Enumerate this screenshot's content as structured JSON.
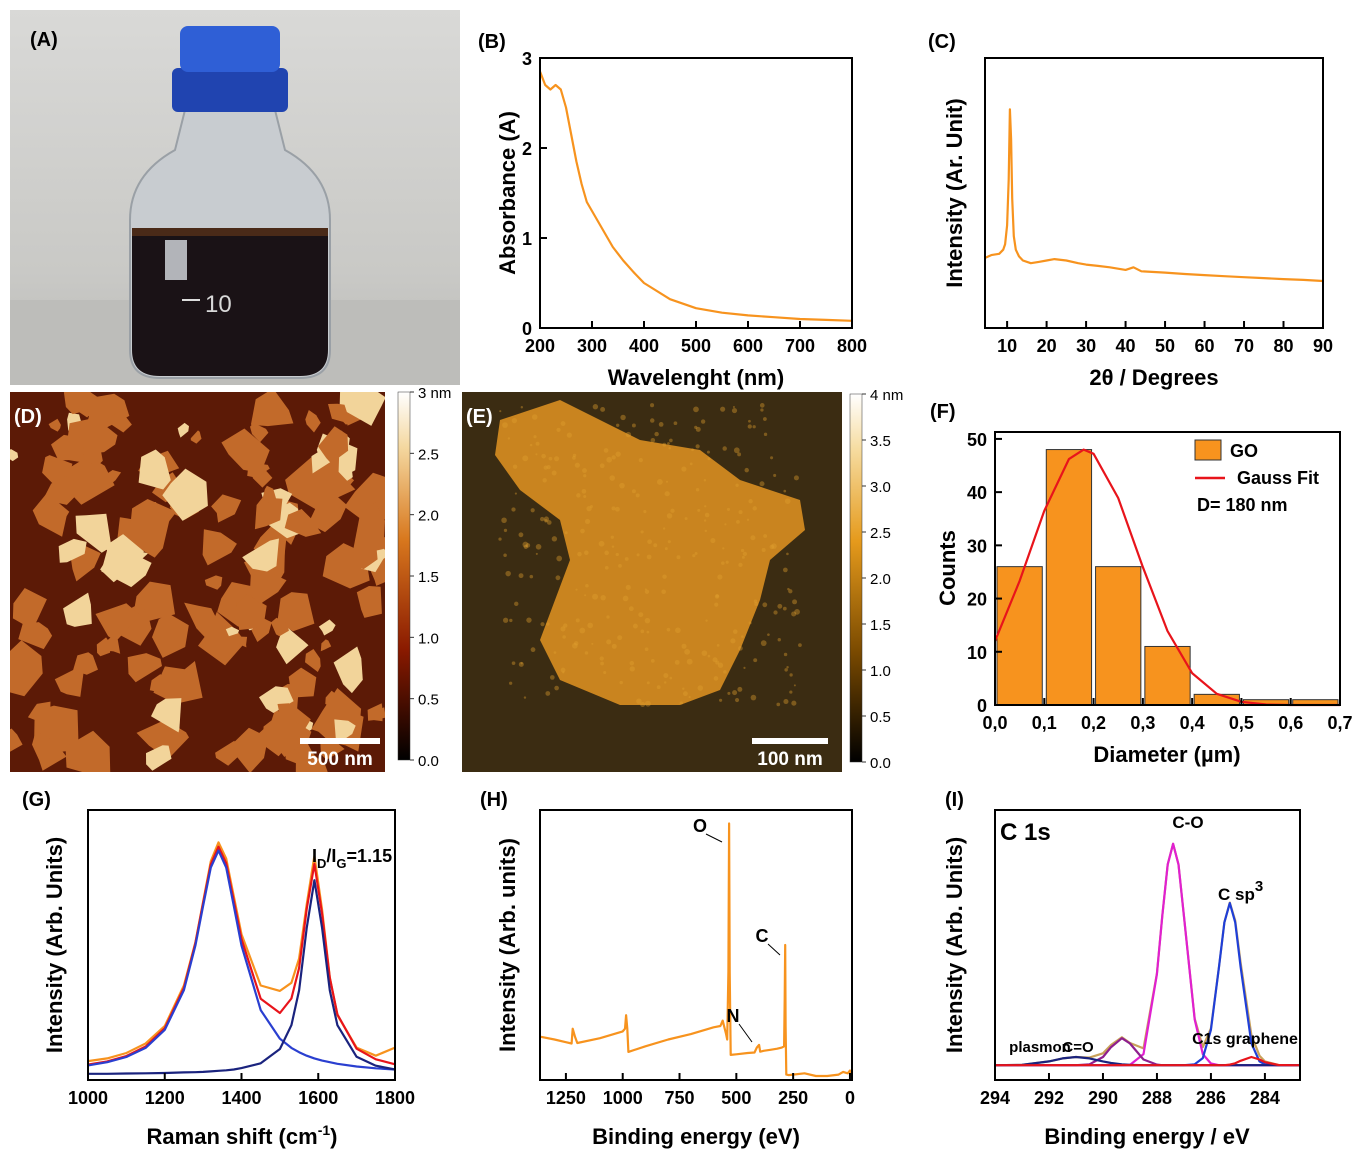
{
  "chart_data": [
    {
      "type": "photo",
      "label": "(A)",
      "annotations": [
        "10"
      ]
    },
    {
      "type": "line",
      "label": "(B)",
      "xlabel": "Wavelenght (nm)",
      "ylabel": "Absorbance (A)",
      "xlim": [
        200,
        800
      ],
      "ylim": [
        0,
        3
      ],
      "xticks": [
        200,
        300,
        400,
        500,
        600,
        700,
        800
      ],
      "yticks": [
        0,
        1,
        2,
        3
      ],
      "x": [
        200,
        210,
        220,
        230,
        240,
        250,
        260,
        270,
        280,
        290,
        300,
        320,
        340,
        360,
        380,
        400,
        450,
        500,
        550,
        600,
        650,
        700,
        750,
        800
      ],
      "series": [
        {
          "color": "#f7931e",
          "values": [
            2.85,
            2.7,
            2.65,
            2.7,
            2.65,
            2.45,
            2.15,
            1.85,
            1.6,
            1.4,
            1.3,
            1.1,
            0.9,
            0.75,
            0.62,
            0.5,
            0.32,
            0.22,
            0.17,
            0.14,
            0.12,
            0.1,
            0.09,
            0.08
          ]
        }
      ]
    },
    {
      "type": "line",
      "label": "(C)",
      "xlabel": "2θ / Degrees",
      "ylabel": "Intensity (Ar. Unit)",
      "xlim": [
        4.4,
        90
      ],
      "ylim": [
        0,
        100
      ],
      "xticks": [
        10,
        20,
        30,
        40,
        50,
        60,
        70,
        80,
        90
      ],
      "x": [
        4.5,
        6,
        8,
        9,
        9.5,
        10,
        10.4,
        10.7,
        11,
        11.3,
        11.7,
        12.2,
        13,
        14,
        16,
        18,
        20,
        22,
        25,
        28,
        30,
        33,
        36,
        40,
        42,
        44,
        50,
        55,
        60,
        65,
        70,
        75,
        80,
        85,
        90
      ],
      "series": [
        {
          "color": "#f7931e",
          "values": [
            26,
            27,
            27.5,
            29,
            31,
            38,
            55,
            81,
            70,
            48,
            34,
            29,
            26.5,
            25,
            24,
            24.5,
            25,
            25.5,
            25,
            24,
            23.5,
            23,
            22.5,
            21.5,
            22.5,
            21,
            20.5,
            20,
            19.6,
            19.2,
            18.8,
            18.5,
            18.1,
            17.8,
            17.4
          ]
        }
      ]
    },
    {
      "type": "afm",
      "label": "(D)",
      "scale_bar": "500 nm",
      "clim": [
        0,
        3
      ],
      "cticks": [
        {
          "value": 0,
          "label": "0.0"
        },
        0.5,
        {
          "value": 1,
          "label": "1.0"
        },
        1.5,
        {
          "value": 2,
          "label": "2.0"
        },
        2.5,
        {
          "value": 3,
          "label": "3 nm"
        }
      ]
    },
    {
      "type": "afm",
      "label": "(E)",
      "scale_bar": "100 nm",
      "clim": [
        0,
        4
      ],
      "cticks": [
        {
          "value": 0,
          "label": "0.0"
        },
        0.5,
        {
          "value": 1,
          "label": "1.0"
        },
        1.5,
        {
          "value": 2,
          "label": "2.0"
        },
        2.5,
        {
          "value": 3,
          "label": "3.0"
        },
        3.5,
        {
          "value": 4,
          "label": "4 nm"
        }
      ]
    },
    {
      "type": "histogram",
      "label": "(F)",
      "xlabel": "Diameter (µm)",
      "ylabel": "Counts",
      "name": "GO",
      "color": "#f7931e",
      "bins": [
        0,
        0.1,
        0.2,
        0.3,
        0.4,
        0.5,
        0.6,
        0.7
      ],
      "counts": [
        26,
        48,
        26,
        11,
        2,
        1,
        1
      ],
      "xlim": [
        0,
        0.7
      ],
      "ylim": [
        0,
        51.3
      ],
      "xticks": [
        {
          "value": 0,
          "label": "0,0"
        },
        {
          "value": 0.1,
          "label": "0,1"
        },
        {
          "value": 0.2,
          "label": "0,2"
        },
        {
          "value": 0.3,
          "label": "0,3"
        },
        {
          "value": 0.4,
          "label": "0,4"
        },
        {
          "value": 0.5,
          "label": "0,5"
        },
        {
          "value": 0.6,
          "label": "0,6"
        },
        {
          "value": 0.7,
          "label": "0,7"
        }
      ],
      "yticks": [
        0,
        10,
        20,
        30,
        40,
        50
      ],
      "annotation": "D= 180 nm",
      "series": [
        {
          "name": "Gauss Fit",
          "color": "#e8141b",
          "x": [
            0,
            0.05,
            0.1,
            0.15,
            0.18,
            0.2,
            0.25,
            0.3,
            0.35,
            0.4,
            0.45,
            0.5,
            0.55,
            0.6,
            0.65,
            0.7
          ],
          "values": [
            12,
            23.3,
            36.5,
            46.2,
            48,
            47.2,
            38.9,
            25.9,
            13.9,
            6,
            2.1,
            0.6,
            0.1,
            0,
            0,
            0
          ]
        }
      ]
    },
    {
      "type": "line",
      "label": "(G)",
      "xlabel": [
        "Raman shift (cm",
        "-1",
        ")"
      ],
      "ylabel": "Intensity (Arb. Units)",
      "xlim": [
        1000,
        1800
      ],
      "ylim": [
        0,
        100
      ],
      "xticks": [
        1000,
        1200,
        1400,
        1600,
        1800
      ],
      "annotation": [
        "I",
        "D",
        "/I",
        "G",
        "=1.15"
      ],
      "x": [
        1000,
        1050,
        1100,
        1150,
        1200,
        1250,
        1280,
        1300,
        1320,
        1340,
        1360,
        1380,
        1400,
        1450,
        1500,
        1530,
        1550,
        1570,
        1590,
        1610,
        1630,
        1650,
        1700,
        1750,
        1800
      ],
      "series": [
        {
          "color": "#f7931e",
          "values": [
            7,
            8,
            10,
            13.5,
            20,
            35,
            51,
            66,
            81,
            88,
            82,
            68,
            54,
            35,
            33,
            36,
            45,
            65,
            83,
            63,
            38,
            24,
            12,
            9,
            12
          ]
        },
        {
          "color": "#e8141b",
          "values": [
            5.7,
            6.9,
            8.9,
            12.4,
            19.2,
            34.1,
            50.7,
            65.5,
            79.9,
            86.4,
            80.3,
            66.4,
            52.2,
            30.1,
            24.8,
            30.2,
            41.5,
            63.3,
            80,
            61.5,
            37.8,
            24.3,
            11.6,
            7.65,
            5.8
          ]
        },
        {
          "color": "#2a3fd0",
          "values": [
            5.4,
            6.6,
            8.5,
            11.9,
            18.6,
            33.3,
            49.8,
            64.5,
            78.7,
            85,
            78.7,
            64.5,
            49.8,
            25.9,
            15.3,
            11.9,
            10.3,
            9,
            8,
            7.2,
            6.6,
            6,
            5,
            4.35,
            3.9
          ]
        },
        {
          "color": "#1a237e",
          "values": [
            2.3,
            2.3,
            2.4,
            2.5,
            2.6,
            2.8,
            2.9,
            3,
            3.2,
            3.4,
            3.6,
            3.9,
            4.4,
            6.2,
            11.5,
            20.3,
            33.2,
            56.3,
            74,
            56.3,
            33.2,
            20.3,
            8.6,
            5.3,
            3.9
          ]
        }
      ]
    },
    {
      "type": "line",
      "label": "(H)",
      "xlabel": "Binding energy (eV)",
      "ylabel": "Intensity (Arb. units)",
      "xlim": [
        1364,
        -9
      ],
      "ylim": [
        0,
        100
      ],
      "xticks": [
        1250,
        1000,
        750,
        500,
        250,
        0
      ],
      "peak_labels": [
        "O",
        "N",
        "C"
      ],
      "x": [
        1360,
        1300,
        1250,
        1225,
        1220,
        1210,
        1200,
        1100,
        1000,
        990,
        985,
        980,
        975,
        900,
        800,
        700,
        600,
        570,
        560,
        545,
        540,
        535,
        532,
        529,
        525,
        500,
        450,
        420,
        410,
        400,
        395,
        380,
        350,
        320,
        300,
        290,
        287,
        285,
        283,
        280,
        270,
        250,
        200,
        150,
        100,
        50,
        30,
        10,
        0,
        -8
      ],
      "series": [
        {
          "color": "#f7931e",
          "values": [
            16,
            15,
            14,
            13.5,
            19,
            16,
            13.7,
            15.5,
            18,
            19,
            24,
            19,
            10.4,
            12.5,
            15,
            17,
            19.5,
            20,
            22,
            17,
            15,
            40,
            95,
            40,
            9.3,
            9.5,
            10,
            10.2,
            12,
            13,
            10.5,
            10.8,
            11.2,
            11.6,
            12,
            12.5,
            30,
            50,
            20,
            2,
            1.8,
            2,
            2.5,
            1.5,
            1.5,
            2,
            3,
            2.5,
            3.5,
            1.5
          ]
        }
      ]
    },
    {
      "type": "line",
      "label": "(I)",
      "xlabel": "Binding energy / eV",
      "ylabel": "Intensity (Arb. Units)",
      "xlim": [
        294,
        282.7
      ],
      "ylim": [
        0,
        100
      ],
      "xticks": [
        294,
        292,
        290,
        288,
        286,
        284
      ],
      "title": "C 1s",
      "peak_labels": [
        "C-O",
        "C=O",
        "plasmon",
        "C1s graphene"
      ],
      "sp3_label": [
        "C sp",
        "3"
      ],
      "x": [
        294,
        293,
        292,
        291.5,
        291,
        290.5,
        290,
        289.7,
        289.3,
        289,
        288.5,
        288,
        287.8,
        287.6,
        287.4,
        287.2,
        287,
        286.6,
        286.3,
        286,
        285.7,
        285.5,
        285.3,
        285.1,
        284.9,
        284.5,
        284.2,
        284,
        283.5,
        283,
        282.7
      ],
      "series": [
        {
          "color": "#c9a15a",
          "values": [
            5.5,
            5.6,
            6.9,
            8,
            8.5,
            8.3,
            9.9,
            13,
            15.8,
            13.7,
            11.7,
            39.4,
            60.8,
            79.8,
            87.5,
            79.8,
            60.8,
            22.7,
            12.2,
            19.1,
            41.9,
            58.4,
            65.7,
            59.1,
            43.5,
            16.6,
            9,
            6.9,
            5.55,
            5.5,
            5.5
          ]
        },
        {
          "color": "#e020d0",
          "values": [
            5.5,
            5.5,
            5.5,
            5.5,
            5.5,
            5.5,
            5.5,
            5.5,
            5.5,
            5.6,
            9.6,
            39.2,
            60.8,
            79.8,
            87.5,
            79.8,
            60.8,
            22.4,
            9.6,
            6.1,
            5.5,
            5.5,
            5.5,
            5.5,
            5.5,
            5.5,
            5.5,
            5.5,
            5.5,
            5.5,
            5.5
          ]
        },
        {
          "color": "#1f3fd8",
          "values": [
            5.5,
            5.5,
            5.5,
            5.5,
            5.5,
            5.5,
            5.5,
            5.5,
            5.5,
            5.5,
            5.5,
            5.5,
            5.5,
            5.5,
            5.5,
            5.5,
            5.5,
            5.8,
            8.1,
            18.5,
            41.9,
            58.4,
            65.5,
            58.4,
            41.9,
            13.6,
            6.9,
            5.8,
            5.5,
            5.5,
            5.5
          ]
        },
        {
          "color": "#8e1f8e",
          "values": [
            5.5,
            5.5,
            5.5,
            5.5,
            5.5,
            5.8,
            8.5,
            12.2,
            15.5,
            13.5,
            7.6,
            5.7,
            5.5,
            5.5,
            5.5,
            5.5,
            5.5,
            5.5,
            5.5,
            5.5,
            5.5,
            5.5,
            5.5,
            5.5,
            5.5,
            5.5,
            5.5,
            5.5,
            5.5,
            5.5,
            5.5
          ]
        },
        {
          "color": "#1a237e",
          "values": [
            5.5,
            5.6,
            6.9,
            8,
            8.5,
            8,
            6.9,
            6.3,
            5.8,
            5.6,
            5.5,
            5.5,
            5.5,
            5.5,
            5.5,
            5.5,
            5.5,
            5.5,
            5.5,
            5.5,
            5.5,
            5.5,
            5.5,
            5.5,
            5.5,
            5.5,
            5.5,
            5.5,
            5.5,
            5.5,
            5.5
          ]
        },
        {
          "color": "#e8141b",
          "values": [
            5.5,
            5.5,
            5.5,
            5.5,
            5.5,
            5.5,
            5.5,
            5.5,
            5.5,
            5.5,
            5.5,
            5.5,
            5.5,
            5.5,
            5.5,
            5.5,
            5.5,
            5.5,
            5.5,
            5.5,
            5.5,
            5.5,
            5.7,
            6.2,
            7.1,
            8.5,
            7.6,
            6.6,
            5.55,
            5.5,
            5.5
          ]
        }
      ]
    }
  ]
}
